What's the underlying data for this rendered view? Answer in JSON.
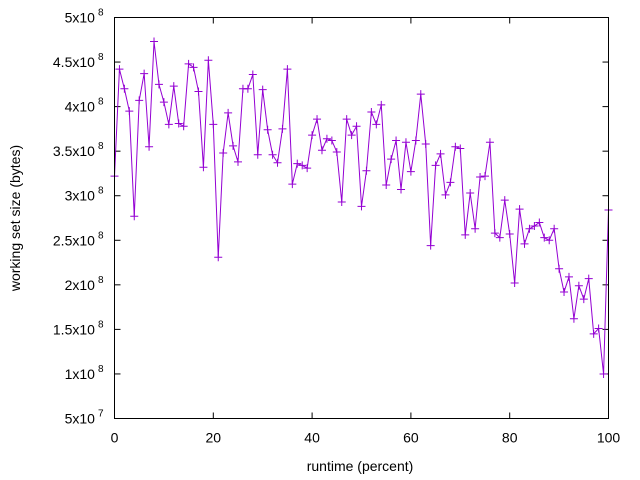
{
  "chart_data": {
    "type": "line",
    "xlabel": "runtime (percent)",
    "ylabel": "working set size (bytes)",
    "xlim": [
      0,
      100
    ],
    "ylim": [
      50000000,
      500000000
    ],
    "x_ticks": [
      0,
      20,
      40,
      60,
      80,
      100
    ],
    "y_ticks": [
      {
        "value": 50000000,
        "mantissa": "5x10",
        "exp": "7"
      },
      {
        "value": 100000000,
        "mantissa": "1x10",
        "exp": "8"
      },
      {
        "value": 150000000,
        "mantissa": "1.5x10",
        "exp": "8"
      },
      {
        "value": 200000000,
        "mantissa": "2x10",
        "exp": "8"
      },
      {
        "value": 250000000,
        "mantissa": "2.5x10",
        "exp": "8"
      },
      {
        "value": 300000000,
        "mantissa": "3x10",
        "exp": "8"
      },
      {
        "value": 350000000,
        "mantissa": "3.5x10",
        "exp": "8"
      },
      {
        "value": 400000000,
        "mantissa": "4x10",
        "exp": "8"
      },
      {
        "value": 450000000,
        "mantissa": "4.5x10",
        "exp": "8"
      },
      {
        "value": 500000000,
        "mantissa": "5x10",
        "exp": "8"
      }
    ],
    "grid": false,
    "legend": "none",
    "series": [
      {
        "color": "#9400d3",
        "marker": "plus",
        "x": [
          0,
          1,
          2,
          3,
          4,
          5,
          6,
          7,
          8,
          9,
          10,
          11,
          12,
          13,
          14,
          15,
          16,
          17,
          18,
          19,
          20,
          21,
          22,
          23,
          24,
          25,
          26,
          27,
          28,
          29,
          30,
          31,
          32,
          33,
          34,
          35,
          36,
          37,
          38,
          39,
          40,
          41,
          42,
          43,
          44,
          45,
          46,
          47,
          48,
          49,
          50,
          51,
          52,
          53,
          54,
          55,
          56,
          57,
          58,
          59,
          60,
          61,
          62,
          63,
          64,
          65,
          66,
          67,
          68,
          69,
          70,
          71,
          72,
          73,
          74,
          75,
          76,
          77,
          78,
          79,
          80,
          81,
          82,
          83,
          84,
          85,
          86,
          87,
          88,
          89,
          90,
          91,
          92,
          93,
          94,
          95,
          96,
          97,
          98,
          99,
          100
        ],
        "y": [
          322000000,
          442000000,
          420000000,
          395000000,
          277000000,
          407000000,
          437000000,
          355000000,
          473000000,
          425000000,
          405000000,
          380000000,
          423000000,
          381000000,
          378000000,
          448000000,
          444000000,
          417000000,
          332000000,
          452000000,
          380000000,
          231000000,
          348000000,
          393000000,
          356000000,
          338000000,
          420000000,
          420000000,
          436000000,
          346000000,
          419000000,
          374000000,
          346000000,
          337000000,
          375000000,
          442000000,
          313000000,
          336000000,
          334000000,
          331000000,
          368000000,
          386000000,
          351000000,
          364000000,
          362000000,
          349000000,
          293000000,
          386000000,
          368000000,
          378000000,
          288000000,
          328000000,
          394000000,
          380000000,
          402000000,
          312000000,
          341000000,
          362000000,
          307000000,
          360000000,
          327000000,
          362000000,
          414000000,
          358000000,
          244000000,
          334000000,
          347000000,
          301000000,
          315000000,
          355000000,
          353000000,
          256000000,
          303000000,
          263000000,
          321000000,
          322000000,
          360000000,
          258000000,
          253000000,
          295000000,
          257000000,
          202000000,
          285000000,
          246000000,
          263000000,
          266000000,
          270000000,
          253000000,
          250000000,
          263000000,
          218000000,
          192000000,
          209000000,
          162000000,
          199000000,
          184000000,
          207000000,
          145000000,
          151000000,
          100000000,
          284000000
        ]
      }
    ]
  }
}
